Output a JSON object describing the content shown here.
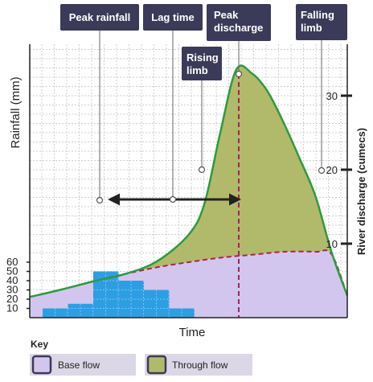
{
  "chart_data": {
    "type": "area",
    "title": "",
    "xlabel": "Time",
    "ylabel_left": "Rainfall (mm)",
    "ylabel_right": "River discharge (cumecs)",
    "ylim_left": [
      0,
      60
    ],
    "yticks_left": [
      "10",
      "20",
      "30",
      "40",
      "50",
      "60"
    ],
    "ylim_right": [
      0,
      34
    ],
    "yticks_right": [
      "10",
      "20",
      "30"
    ],
    "grid": true,
    "rainfall_bars": {
      "name": "Rainfall",
      "x_slots": [
        1,
        2,
        3,
        4,
        5,
        6,
        7
      ],
      "values": [
        10,
        15,
        50,
        40,
        30,
        10,
        0
      ]
    },
    "series": [
      {
        "name": "Base flow",
        "color": "#d2c6ee",
        "x": [
          0,
          0.1,
          0.2,
          0.3,
          0.4,
          0.5,
          0.6,
          0.7,
          0.8,
          0.9,
          0.95,
          1.0
        ],
        "values": [
          2.8,
          3.8,
          4.9,
          5.9,
          6.8,
          7.5,
          8.1,
          8.5,
          8.9,
          8.9,
          8.6,
          3.0
        ]
      },
      {
        "name": "Through flow",
        "color": "#b1ba6a",
        "x": [
          0,
          0.1,
          0.2,
          0.3,
          0.4,
          0.5,
          0.55,
          0.6,
          0.65,
          0.7,
          0.75,
          0.8,
          0.85,
          0.9,
          0.95,
          1.0
        ],
        "values": [
          2.8,
          3.8,
          4.9,
          5.9,
          7.6,
          11.2,
          15.4,
          25.0,
          33.5,
          33.0,
          30.5,
          26.3,
          21.5,
          16.4,
          8.9,
          3.0
        ]
      }
    ],
    "annotations": {
      "peak_rainfall": "Peak rainfall",
      "lag_time": "Lag time",
      "peak_discharge": "Peak discharge",
      "rising_limb": "Rising limb",
      "falling_limb": "Falling limb"
    },
    "legend": {
      "title": "Key",
      "position": "bottom",
      "items": [
        {
          "label": "Base flow",
          "color": "#d2c6ee"
        },
        {
          "label": "Through flow",
          "color": "#b1ba6a"
        }
      ]
    },
    "colors": {
      "callout_bg": "#3b3a58",
      "bars": "#2e9ee3",
      "discharge_line": "#2e9a3f",
      "marker_line": "#a8215a",
      "lag_arrow": "#222222"
    }
  }
}
